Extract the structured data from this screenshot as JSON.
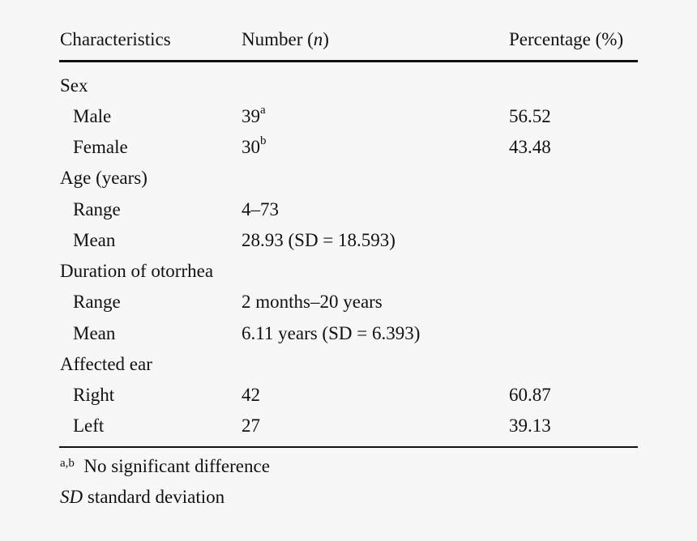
{
  "table": {
    "headers": {
      "characteristics": "Characteristics",
      "number_text": "Number (",
      "number_var": "n",
      "number_close": ")",
      "percentage": "Percentage (%)"
    },
    "rows": [
      {
        "label": "Sex",
        "number": "",
        "sup": "",
        "percentage": ""
      },
      {
        "label": "Male",
        "number": "39",
        "sup": "a",
        "percentage": "56.52"
      },
      {
        "label": "Female",
        "number": "30",
        "sup": "b",
        "percentage": "43.48"
      },
      {
        "label": "Age (years)",
        "number": "",
        "sup": "",
        "percentage": ""
      },
      {
        "label": "Range",
        "number": "4–73",
        "sup": "",
        "percentage": ""
      },
      {
        "label": "Mean",
        "number": "28.93 (SD = 18.593)",
        "sup": "",
        "percentage": ""
      },
      {
        "label": "Duration of otorrhea",
        "number": "",
        "sup": "",
        "percentage": ""
      },
      {
        "label": "Range",
        "number": "2 months–20 years",
        "sup": "",
        "percentage": ""
      },
      {
        "label": "Mean",
        "number": "6.11 years (SD = 6.393)",
        "sup": "",
        "percentage": ""
      },
      {
        "label": "Affected ear",
        "number": "",
        "sup": "",
        "percentage": ""
      },
      {
        "label": "Right",
        "number": "42",
        "sup": "",
        "percentage": "60.87"
      },
      {
        "label": "Left",
        "number": "27",
        "sup": "",
        "percentage": "39.13"
      }
    ]
  },
  "footnotes": {
    "marker": "a,b",
    "significance": "No significant difference",
    "sd_abbrev": "SD",
    "sd_text": "standard deviation"
  }
}
